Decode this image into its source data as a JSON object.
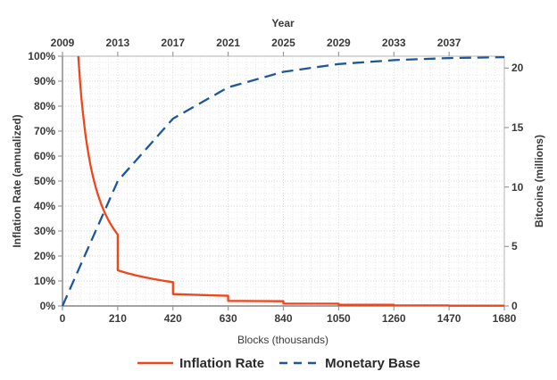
{
  "figure": {
    "background": "#ffffff",
    "text_color": "#3a3a3a"
  },
  "legend": {
    "items": [
      {
        "label": "Inflation Rate",
        "color": "#f0461c",
        "style": "solid"
      },
      {
        "label": "Monetary Base",
        "color": "#1e5799",
        "style": "dashed"
      }
    ]
  },
  "chart_data": {
    "type": "line",
    "title": "",
    "top_axis": {
      "title": "Year",
      "ticks": [
        "2009",
        "2013",
        "2017",
        "2021",
        "2025",
        "2029",
        "2033",
        "2037"
      ],
      "tick_block_positions": [
        0,
        210,
        420,
        630,
        840,
        1050,
        1260,
        1470
      ]
    },
    "x_axis": {
      "title": "Blocks (thousands)",
      "ticks": [
        "0",
        "210",
        "420",
        "630",
        "840",
        "1050",
        "1260",
        "1470",
        "1680"
      ],
      "tick_values": [
        0,
        210,
        420,
        630,
        840,
        1050,
        1260,
        1470,
        1680
      ],
      "range": [
        0,
        1680
      ]
    },
    "y_left": {
      "title": "Inflation Rate (annualized)",
      "tick_labels": [
        "0%",
        "10%",
        "20%",
        "30%",
        "40%",
        "50%",
        "60%",
        "70%",
        "80%",
        "90%",
        "100%"
      ],
      "tick_values": [
        0,
        10,
        20,
        30,
        40,
        50,
        60,
        70,
        80,
        90,
        100
      ],
      "range": [
        0,
        100
      ]
    },
    "y_right": {
      "title": "Bitcoins (millions)",
      "tick_labels": [
        "0",
        "5",
        "10",
        "15",
        "20"
      ],
      "tick_values": [
        0,
        5,
        10,
        15,
        20
      ],
      "range": [
        0,
        21
      ]
    },
    "grid": {
      "x_minor_step": 35,
      "y_minor_step": 2.5,
      "minor_color": "#e7e7e7",
      "major_color": "#dadada",
      "dotted": true
    },
    "series": [
      {
        "name": "Inflation Rate",
        "axis": "left",
        "color": "#f0461c",
        "style": "solid",
        "points": [
          [
            60,
            100
          ],
          [
            64,
            93.75
          ],
          [
            68,
            88.24
          ],
          [
            72,
            83.33
          ],
          [
            77,
            77.92
          ],
          [
            82,
            73.17
          ],
          [
            88,
            68.18
          ],
          [
            94,
            63.83
          ],
          [
            100,
            60
          ],
          [
            108,
            55.56
          ],
          [
            116,
            51.72
          ],
          [
            126,
            47.62
          ],
          [
            136,
            44.12
          ],
          [
            148,
            40.54
          ],
          [
            162,
            37.04
          ],
          [
            178,
            33.71
          ],
          [
            194,
            30.93
          ],
          [
            210,
            28.57
          ],
          [
            210,
            14.29
          ],
          [
            245,
            13.19
          ],
          [
            280,
            12.24
          ],
          [
            315,
            11.43
          ],
          [
            350,
            10.71
          ],
          [
            385,
            10.08
          ],
          [
            420,
            9.52
          ],
          [
            420,
            4.76
          ],
          [
            472,
            4.57
          ],
          [
            525,
            4.4
          ],
          [
            578,
            4.23
          ],
          [
            630,
            4.08
          ],
          [
            630,
            2.04
          ],
          [
            735,
            1.97
          ],
          [
            840,
            1.9
          ],
          [
            840,
            0.95
          ],
          [
            945,
            0.94
          ],
          [
            1050,
            0.92
          ],
          [
            1050,
            0.46
          ],
          [
            1155,
            0.46
          ],
          [
            1260,
            0.45
          ],
          [
            1260,
            0.23
          ],
          [
            1365,
            0.22
          ],
          [
            1470,
            0.22
          ],
          [
            1470,
            0.11
          ],
          [
            1680,
            0.11
          ]
        ]
      },
      {
        "name": "Monetary Base",
        "axis": "right",
        "color": "#1e5799",
        "style": "dashed",
        "points": [
          [
            0,
            0
          ],
          [
            210,
            10.5
          ],
          [
            420,
            15.75
          ],
          [
            630,
            18.38
          ],
          [
            840,
            19.69
          ],
          [
            1050,
            20.34
          ],
          [
            1260,
            20.67
          ],
          [
            1470,
            20.84
          ],
          [
            1680,
            20.92
          ]
        ]
      }
    ]
  }
}
